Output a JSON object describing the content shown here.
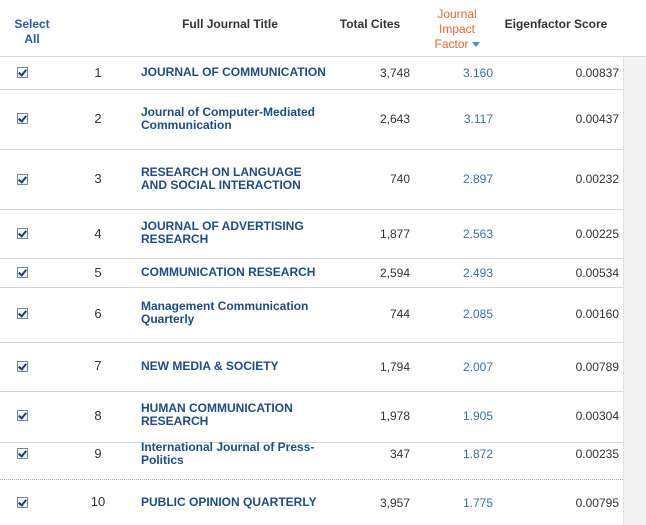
{
  "header": {
    "select_all_line1": "Select",
    "select_all_line2": "All",
    "full_title": "Full Journal Title",
    "total_cites": "Total Cites",
    "jif_line1": "Journal",
    "jif_line2": "Impact",
    "jif_line3": "Factor",
    "eigenfactor": "Eigenfactor Score"
  },
  "rows": [
    {
      "rank": "1",
      "title": "JOURNAL OF COMMUNICATION",
      "cites": "3,748",
      "jif": "3.160",
      "eig": "0.00837",
      "checked": true
    },
    {
      "rank": "2",
      "title": "Journal of Computer-Mediated Communication",
      "cites": "2,643",
      "jif": "3.117",
      "eig": "0.00437",
      "checked": true
    },
    {
      "rank": "3",
      "title": "RESEARCH ON LANGUAGE AND SOCIAL INTERACTION",
      "cites": "740",
      "jif": "2.897",
      "eig": "0.00232",
      "checked": true
    },
    {
      "rank": "4",
      "title": "JOURNAL OF ADVERTISING RESEARCH",
      "cites": "1,877",
      "jif": "2.563",
      "eig": "0.00225",
      "checked": true
    },
    {
      "rank": "5",
      "title": "COMMUNICATION RESEARCH",
      "cites": "2,594",
      "jif": "2.493",
      "eig": "0.00534",
      "checked": true
    },
    {
      "rank": "6",
      "title": "Management Communication Quarterly",
      "cites": "744",
      "jif": "2.085",
      "eig": "0.00160",
      "checked": true
    },
    {
      "rank": "7",
      "title": "NEW MEDIA & SOCIETY",
      "cites": "1,794",
      "jif": "2.007",
      "eig": "0.00789",
      "checked": true
    },
    {
      "rank": "8",
      "title": "HUMAN COMMUNICATION RESEARCH",
      "cites": "1,978",
      "jif": "1.905",
      "eig": "0.00304",
      "checked": true
    },
    {
      "rank": "9",
      "title": "International Journal of Press-Politics",
      "cites": "347",
      "jif": "1.872",
      "eig": "0.00235",
      "checked": true
    },
    {
      "rank": "10",
      "title": "PUBLIC OPINION QUARTERLY",
      "cites": "3,957",
      "jif": "1.775",
      "eig": "0.00795",
      "checked": true
    }
  ],
  "colors": {
    "link": "#1c4d8a",
    "sorted_header": "#e8652a",
    "jif_value": "#3b6fb5"
  },
  "icons": {
    "sort": "sort-descending-arrow-icon",
    "checkbox": "checkbox-checked-icon"
  }
}
